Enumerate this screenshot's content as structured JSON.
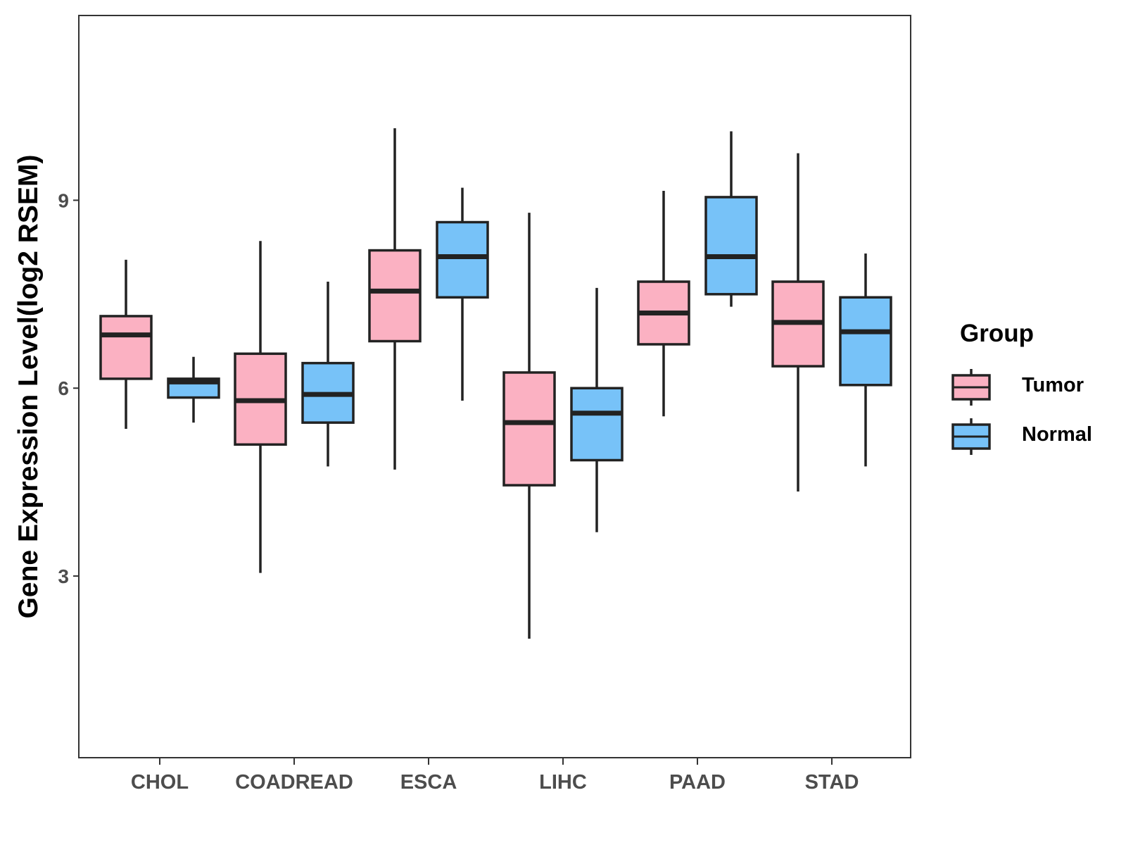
{
  "chart_data": {
    "type": "boxplot",
    "categories": [
      "CHOL",
      "COADREAD",
      "ESCA",
      "LIHC",
      "PAAD",
      "STAD"
    ],
    "ylabel": "Gene Expression Level(log2 RSEM)",
    "xlabel": "",
    "ylim": [
      0.1,
      11.95
    ],
    "yticks": [
      3,
      6,
      9
    ],
    "legend": {
      "title": "Group",
      "position": "right",
      "entries": [
        "Tumor",
        "Normal"
      ]
    },
    "series": [
      {
        "name": "Tumor",
        "color": "#fbb1c2",
        "boxes": [
          {
            "category": "CHOL",
            "min": 5.35,
            "q1": 6.15,
            "median": 6.85,
            "q3": 7.15,
            "max": 8.05
          },
          {
            "category": "COADREAD",
            "min": 3.05,
            "q1": 5.1,
            "median": 5.8,
            "q3": 6.55,
            "max": 8.35
          },
          {
            "category": "ESCA",
            "min": 4.7,
            "q1": 6.75,
            "median": 7.55,
            "q3": 8.2,
            "max": 10.15
          },
          {
            "category": "LIHC",
            "min": 2.0,
            "q1": 4.45,
            "median": 5.45,
            "q3": 6.25,
            "max": 8.8
          },
          {
            "category": "PAAD",
            "min": 5.55,
            "q1": 6.7,
            "median": 7.2,
            "q3": 7.7,
            "max": 9.15
          },
          {
            "category": "STAD",
            "min": 4.35,
            "q1": 6.35,
            "median": 7.05,
            "q3": 7.7,
            "max": 9.75
          }
        ]
      },
      {
        "name": "Normal",
        "color": "#77c2f8",
        "boxes": [
          {
            "category": "CHOL",
            "min": 5.45,
            "q1": 5.85,
            "median": 6.1,
            "q3": 6.15,
            "max": 6.5
          },
          {
            "category": "COADREAD",
            "min": 4.75,
            "q1": 5.45,
            "median": 5.9,
            "q3": 6.4,
            "max": 7.7
          },
          {
            "category": "ESCA",
            "min": 5.8,
            "q1": 7.45,
            "median": 8.1,
            "q3": 8.65,
            "max": 9.2
          },
          {
            "category": "LIHC",
            "min": 3.7,
            "q1": 4.85,
            "median": 5.6,
            "q3": 6.0,
            "max": 7.6
          },
          {
            "category": "PAAD",
            "min": 7.3,
            "q1": 7.5,
            "median": 8.1,
            "q3": 9.05,
            "max": 10.1
          },
          {
            "category": "STAD",
            "min": 4.75,
            "q1": 6.05,
            "median": 6.9,
            "q3": 7.45,
            "max": 8.15
          }
        ]
      }
    ]
  }
}
